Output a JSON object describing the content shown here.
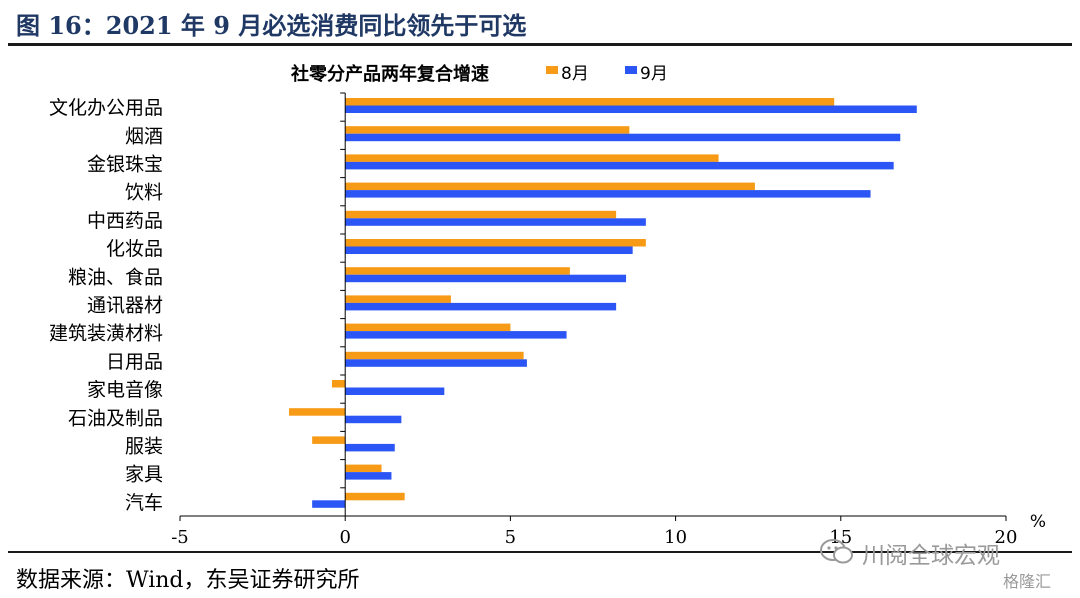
{
  "figure_title": "图 16：2021 年 9 月必选消费同比领先于可选",
  "source": "数据来源：Wind，东吴证券研究所",
  "watermark": "川阅全球宏观",
  "watermark2": "格隆汇",
  "colors": {
    "aug": "#f79a15",
    "sep": "#2b56f5",
    "title": "#1f3864"
  },
  "chart_data": {
    "type": "bar",
    "orientation": "horizontal",
    "title": "社零分产品两年复合增速",
    "xlabel": "%",
    "xlim": [
      -5,
      20
    ],
    "xticks": [
      -5,
      0,
      5,
      10,
      15,
      20
    ],
    "grid": false,
    "legend_position": "top",
    "categories": [
      "文化办公用品",
      "烟酒",
      "金银珠宝",
      "饮料",
      "中西药品",
      "化妆品",
      "粮油、食品",
      "通讯器材",
      "建筑装潢材料",
      "日用品",
      "家电音像",
      "石油及制品",
      "服装",
      "家具",
      "汽车"
    ],
    "series": [
      {
        "name": "8月",
        "color": "#f79a15",
        "values": [
          14.8,
          8.6,
          11.3,
          12.4,
          8.2,
          9.1,
          6.8,
          3.2,
          5.0,
          5.4,
          -0.4,
          -1.7,
          -1.0,
          1.1,
          1.8
        ]
      },
      {
        "name": "9月",
        "color": "#2b56f5",
        "values": [
          17.3,
          16.8,
          16.6,
          15.9,
          9.1,
          8.7,
          8.5,
          8.2,
          6.7,
          5.5,
          3.0,
          1.7,
          1.5,
          1.4,
          -1.0
        ]
      }
    ]
  }
}
